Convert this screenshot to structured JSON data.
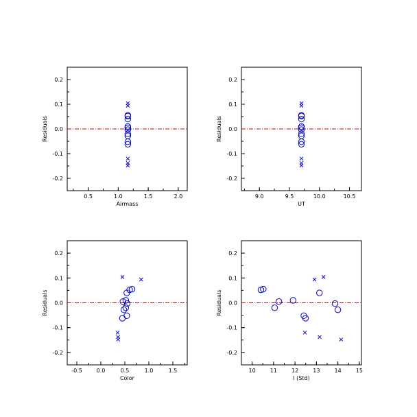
{
  "chart_data": [
    {
      "type": "scatter",
      "xlabel": "Airmass",
      "ylabel": "Residuals",
      "xlim": [
        0.15,
        2.15
      ],
      "ylim": [
        -0.25,
        0.25
      ],
      "xticks": [
        "0.5",
        "1.0",
        "1.5",
        "2.0"
      ],
      "yticks": [
        "0.2",
        "0.1",
        "0.0",
        "-0.1",
        "-0.2"
      ],
      "reference_line_y": 0.0,
      "colors": {
        "points": "#0000cc",
        "reference_line": "#cc0000"
      },
      "series": [
        {
          "marker": "x",
          "points": [
            [
              1.16,
              0.104
            ],
            [
              1.16,
              0.094
            ],
            [
              1.16,
              -0.12
            ],
            [
              1.16,
              -0.138
            ],
            [
              1.16,
              -0.148
            ]
          ]
        },
        {
          "marker": "o",
          "points": [
            [
              1.16,
              0.055
            ],
            [
              1.16,
              0.052
            ],
            [
              1.16,
              0.04
            ],
            [
              1.16,
              0.01
            ],
            [
              1.16,
              0.005
            ],
            [
              1.16,
              -0.003
            ],
            [
              1.16,
              -0.02
            ],
            [
              1.16,
              -0.028
            ],
            [
              1.16,
              -0.052
            ],
            [
              1.16,
              -0.062
            ]
          ]
        }
      ]
    },
    {
      "type": "scatter",
      "xlabel": "UT",
      "ylabel": "Residuals",
      "xlim": [
        8.7,
        10.7
      ],
      "ylim": [
        -0.25,
        0.25
      ],
      "xticks": [
        "9.0",
        "9.5",
        "10.0",
        "10.5"
      ],
      "yticks": [
        "0.2",
        "0.1",
        "0.0",
        "-0.1",
        "-0.2"
      ],
      "reference_line_y": 0.0,
      "colors": {
        "points": "#0000cc",
        "reference_line": "#cc0000"
      },
      "series": [
        {
          "marker": "x",
          "points": [
            [
              9.7,
              0.104
            ],
            [
              9.7,
              0.094
            ],
            [
              9.7,
              -0.12
            ],
            [
              9.7,
              -0.138
            ],
            [
              9.7,
              -0.148
            ]
          ]
        },
        {
          "marker": "o",
          "points": [
            [
              9.7,
              0.055
            ],
            [
              9.7,
              0.052
            ],
            [
              9.7,
              0.04
            ],
            [
              9.7,
              0.01
            ],
            [
              9.7,
              0.005
            ],
            [
              9.7,
              -0.003
            ],
            [
              9.7,
              -0.02
            ],
            [
              9.7,
              -0.028
            ],
            [
              9.7,
              -0.052
            ],
            [
              9.7,
              -0.062
            ]
          ]
        }
      ]
    },
    {
      "type": "scatter",
      "xlabel": "Color",
      "ylabel": "Residuals",
      "xlim": [
        -0.7,
        1.8
      ],
      "ylim": [
        -0.25,
        0.25
      ],
      "xticks": [
        "-0.5",
        "0.0",
        "0.5",
        "1.0",
        "1.5"
      ],
      "yticks": [
        "0.2",
        "0.1",
        "0.0",
        "-0.1",
        "-0.2"
      ],
      "reference_line_y": 0.0,
      "colors": {
        "points": "#0000cc",
        "reference_line": "#cc0000"
      },
      "series": [
        {
          "marker": "x",
          "points": [
            [
              0.45,
              0.104
            ],
            [
              0.84,
              0.094
            ],
            [
              0.35,
              -0.12
            ],
            [
              0.36,
              -0.138
            ],
            [
              0.36,
              -0.148
            ]
          ]
        },
        {
          "marker": "o",
          "points": [
            [
              0.65,
              0.055
            ],
            [
              0.6,
              0.052
            ],
            [
              0.54,
              0.04
            ],
            [
              0.52,
              0.01
            ],
            [
              0.46,
              0.005
            ],
            [
              0.55,
              -0.003
            ],
            [
              0.52,
              -0.02
            ],
            [
              0.48,
              -0.028
            ],
            [
              0.54,
              -0.052
            ],
            [
              0.45,
              -0.062
            ]
          ]
        }
      ]
    },
    {
      "type": "scatter",
      "xlabel": "I (Std)",
      "ylabel": "Residuals",
      "xlim": [
        9.5,
        15.1
      ],
      "ylim": [
        -0.25,
        0.25
      ],
      "xticks": [
        "10",
        "11",
        "12",
        "13",
        "14",
        "15"
      ],
      "yticks": [
        "0.2",
        "0.1",
        "0.0",
        "-0.1",
        "-0.2"
      ],
      "reference_line_y": 0.0,
      "colors": {
        "points": "#0000cc",
        "reference_line": "#cc0000"
      },
      "series": [
        {
          "marker": "x",
          "points": [
            [
              13.33,
              0.104
            ],
            [
              12.91,
              0.094
            ],
            [
              12.46,
              -0.12
            ],
            [
              13.15,
              -0.138
            ],
            [
              14.15,
              -0.148
            ]
          ]
        },
        {
          "marker": "o",
          "points": [
            [
              10.52,
              0.055
            ],
            [
              10.41,
              0.052
            ],
            [
              13.14,
              0.04
            ],
            [
              11.91,
              0.01
            ],
            [
              11.25,
              0.005
            ],
            [
              13.87,
              -0.003
            ],
            [
              11.05,
              -0.02
            ],
            [
              14.0,
              -0.028
            ],
            [
              12.41,
              -0.052
            ],
            [
              12.49,
              -0.062
            ]
          ]
        }
      ]
    }
  ]
}
